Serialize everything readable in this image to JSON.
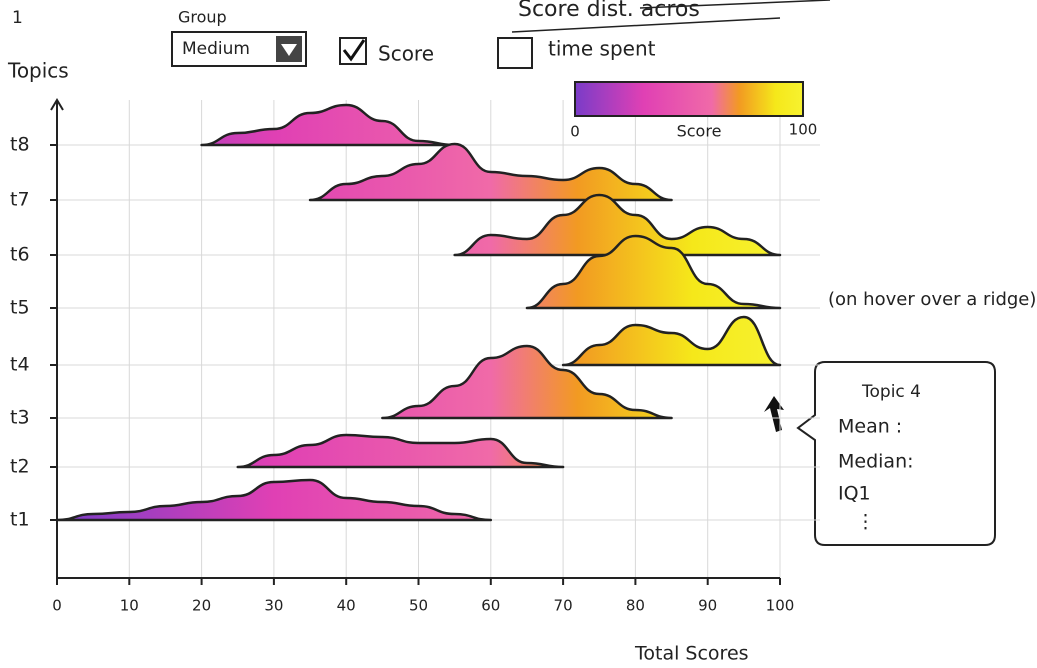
{
  "page_number": "1",
  "controls": {
    "group_label": "Group",
    "group_value": "Medium",
    "score": {
      "label": "Score",
      "checked": true
    },
    "time_spent": {
      "label": "time spent",
      "checked": false
    }
  },
  "annotation": "(on hover over a ridge)",
  "tooltip": {
    "title": "Topic 4",
    "lines": [
      "Mean :",
      "Median:",
      "IQ1",
      "⋮"
    ]
  },
  "chart_data": {
    "type": "ridgeline",
    "title": "Score dist. acros",
    "x_label": "Total Scores",
    "y_label": "Topics",
    "categories": [
      "t1",
      "t2",
      "t3",
      "t4",
      "t5",
      "t6",
      "t7",
      "t8"
    ],
    "x": [
      0,
      5,
      10,
      15,
      20,
      25,
      30,
      35,
      40,
      45,
      50,
      55,
      60,
      65,
      70,
      75,
      80,
      85,
      90,
      95,
      100
    ],
    "series": [
      {
        "name": "t1",
        "values": [
          0,
          0.15,
          0.2,
          0.35,
          0.45,
          0.6,
          0.95,
          1.0,
          0.55,
          0.45,
          0.35,
          0.15,
          0,
          null,
          null,
          null,
          null,
          null,
          null,
          null,
          null
        ]
      },
      {
        "name": "t2",
        "values": [
          null,
          null,
          null,
          null,
          null,
          0,
          0.3,
          0.55,
          0.8,
          0.75,
          0.6,
          0.6,
          0.7,
          0.1,
          0,
          null,
          null,
          null,
          null,
          null,
          null
        ]
      },
      {
        "name": "t3",
        "values": [
          null,
          null,
          null,
          null,
          null,
          null,
          null,
          null,
          null,
          0,
          0.3,
          0.8,
          1.5,
          1.8,
          1.2,
          0.6,
          0.2,
          0,
          null,
          null,
          null
        ]
      },
      {
        "name": "t4",
        "values": [
          null,
          null,
          null,
          null,
          null,
          null,
          null,
          null,
          null,
          null,
          null,
          null,
          null,
          null,
          0,
          0.5,
          1.0,
          0.8,
          0.4,
          1.2,
          0
        ]
      },
      {
        "name": "t5",
        "values": [
          null,
          null,
          null,
          null,
          null,
          null,
          null,
          null,
          null,
          null,
          null,
          null,
          null,
          0,
          0.6,
          1.3,
          1.8,
          1.5,
          0.6,
          0.1,
          0
        ]
      },
      {
        "name": "t6",
        "values": [
          null,
          null,
          null,
          null,
          null,
          null,
          null,
          null,
          null,
          null,
          null,
          0,
          0.5,
          0.4,
          1.0,
          1.5,
          1.0,
          0.4,
          0.7,
          0.4,
          0
        ]
      },
      {
        "name": "t7",
        "values": [
          null,
          null,
          null,
          null,
          null,
          null,
          null,
          0,
          0.4,
          0.6,
          0.9,
          1.4,
          0.7,
          0.6,
          0.5,
          0.8,
          0.4,
          0,
          null,
          null,
          null
        ]
      },
      {
        "name": "t8",
        "values": [
          null,
          null,
          null,
          null,
          0,
          0.3,
          0.4,
          0.8,
          1.0,
          0.6,
          0.1,
          0,
          null,
          null,
          null,
          null,
          null,
          null,
          null,
          null,
          null
        ]
      }
    ],
    "xlim": [
      0,
      100
    ],
    "xticks": [
      0,
      10,
      20,
      30,
      40,
      50,
      60,
      70,
      80,
      90,
      100
    ],
    "grid": true,
    "colorscale": [
      {
        "value": 0,
        "color": "#7a3cc8"
      },
      {
        "value": 30,
        "color": "#e040b4"
      },
      {
        "value": 60,
        "color": "#f06aa8"
      },
      {
        "value": 72,
        "color": "#f29a22"
      },
      {
        "value": 88,
        "color": "#f5e81a"
      },
      {
        "value": 100,
        "color": "#f7f230"
      }
    ],
    "colorbar": {
      "label": "Score",
      "clim": [
        0,
        100
      ]
    }
  }
}
